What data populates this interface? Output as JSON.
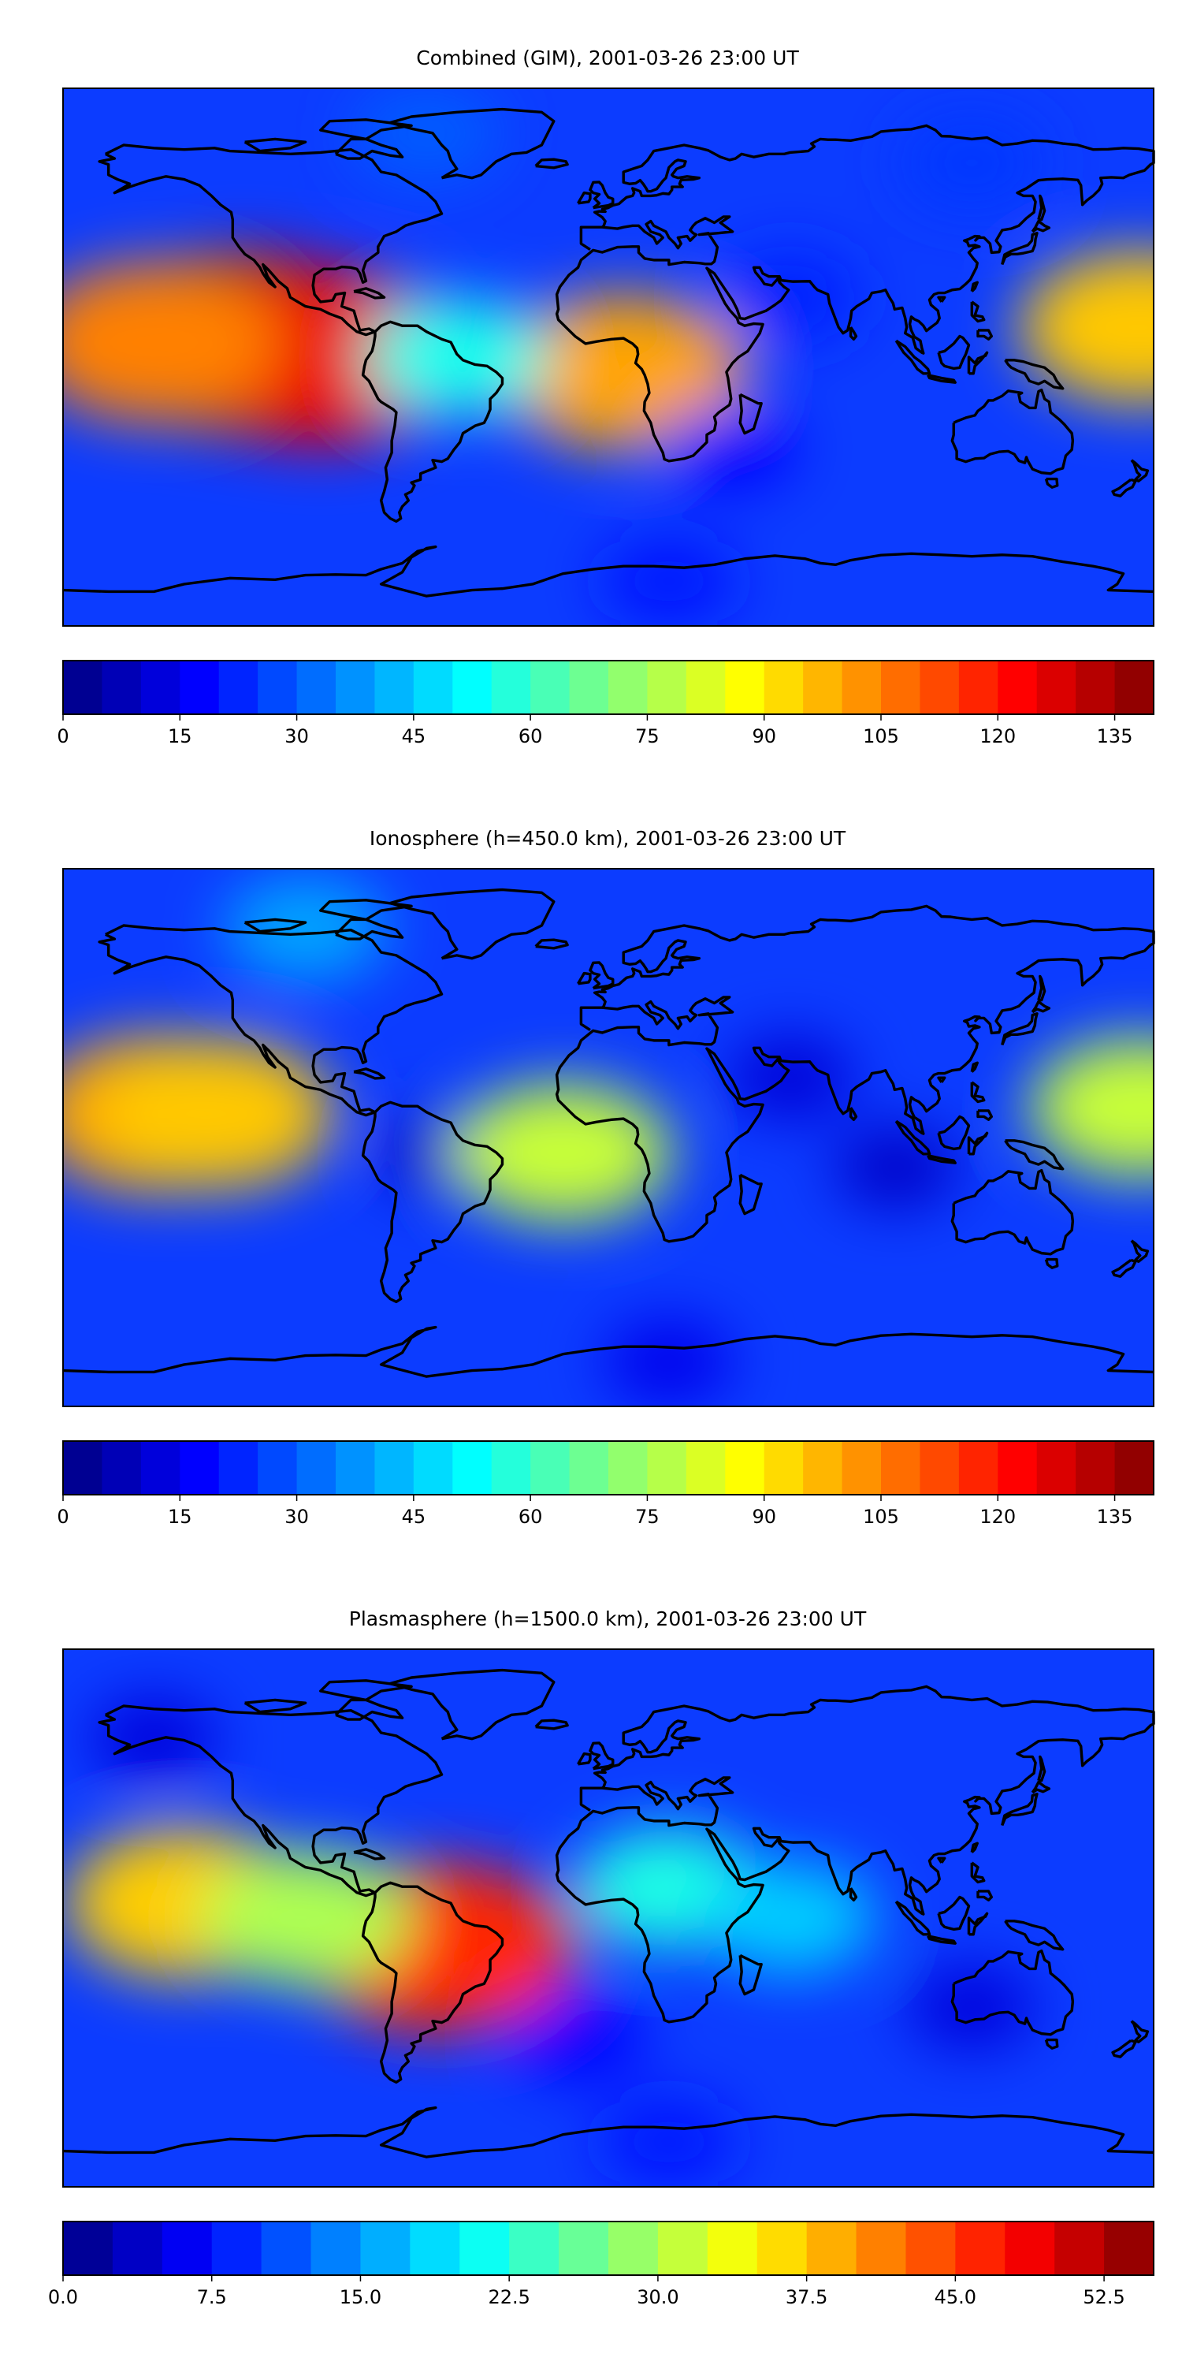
{
  "figure": {
    "colors": {
      "background": "#ffffff",
      "frame": "#000000",
      "coastline": "#000000"
    }
  },
  "chart_data": [
    {
      "type": "heatmap",
      "title": "Combined (GIM), 2001-03-26 23:00 UT",
      "projection": "plate-carree, global",
      "xlabel": "",
      "ylabel": "",
      "colormap": "jet",
      "colorbar": {
        "levels": 28,
        "range": [
          0,
          140
        ],
        "tick_values": [
          0,
          15,
          30,
          45,
          60,
          75,
          90,
          105,
          120,
          135
        ],
        "tick_labels": [
          "0",
          "15",
          "30",
          "45",
          "60",
          "75",
          "90",
          "105",
          "120",
          "135"
        ]
      },
      "features": [
        {
          "lon": -120,
          "lat": 5,
          "value": 133,
          "note": "maximum over eastern Pacific"
        },
        {
          "lon": -95,
          "lat": 0,
          "value": 125
        },
        {
          "lon": -150,
          "lat": 5,
          "value": 105
        },
        {
          "lon": 5,
          "lat": -5,
          "value": 100,
          "note": "secondary maximum off west Africa"
        },
        {
          "lon": -50,
          "lat": 0,
          "value": 55
        },
        {
          "lon": 175,
          "lat": 10,
          "value": 95,
          "note": "western edge of Pacific maximum"
        },
        {
          "lon": 60,
          "lat": 20,
          "value": 22
        },
        {
          "lon": 40,
          "lat": -30,
          "value": 18
        },
        {
          "lon": 120,
          "lat": 65,
          "value": 25
        },
        {
          "lon": -60,
          "lat": 75,
          "value": 30
        },
        {
          "lon": 20,
          "lat": -75,
          "value": 20
        }
      ]
    },
    {
      "type": "heatmap",
      "title": "Ionosphere  (h=450.0 km), 2001-03-26 23:00 UT",
      "projection": "plate-carree, global",
      "xlabel": "",
      "ylabel": "",
      "colormap": "jet",
      "colorbar": {
        "levels": 28,
        "range": [
          0,
          140
        ],
        "tick_values": [
          0,
          15,
          30,
          45,
          60,
          75,
          90,
          105,
          120,
          135
        ],
        "tick_labels": [
          "0",
          "15",
          "30",
          "45",
          "60",
          "75",
          "90",
          "105",
          "120",
          "135"
        ]
      },
      "features": [
        {
          "lon": -150,
          "lat": 8,
          "value": 100,
          "note": "maximum over central Pacific"
        },
        {
          "lon": -130,
          "lat": 8,
          "value": 95
        },
        {
          "lon": -55,
          "lat": -5,
          "value": 10,
          "note": "minimum over Brazil"
        },
        {
          "lon": -15,
          "lat": -5,
          "value": 80
        },
        {
          "lon": 60,
          "lat": 20,
          "value": 12
        },
        {
          "lon": 95,
          "lat": -10,
          "value": 10
        },
        {
          "lon": 175,
          "lat": 10,
          "value": 80
        },
        {
          "lon": -100,
          "lat": 70,
          "value": 40
        },
        {
          "lon": 20,
          "lat": -75,
          "value": 15
        }
      ]
    },
    {
      "type": "heatmap",
      "title": "Plasmasphere (h=1500.0 km), 2001-03-26 23:00 UT",
      "projection": "plate-carree, global",
      "xlabel": "",
      "ylabel": "",
      "colormap": "jet",
      "colorbar": {
        "levels": 22,
        "range": [
          0,
          55
        ],
        "tick_values": [
          0,
          7.5,
          15,
          22.5,
          30,
          37.5,
          45,
          52.5
        ],
        "tick_labels": [
          "0.0",
          "7.5",
          "15.0",
          "22.5",
          "30.0",
          "37.5",
          "45.0",
          "52.5"
        ]
      },
      "features": [
        {
          "lon": -55,
          "lat": -10,
          "value": 46,
          "note": "maximum over Brazil"
        },
        {
          "lon": -140,
          "lat": 5,
          "value": 37
        },
        {
          "lon": -100,
          "lat": 0,
          "value": 30
        },
        {
          "lon": 20,
          "lat": 10,
          "value": 22
        },
        {
          "lon": 60,
          "lat": 0,
          "value": 18
        },
        {
          "lon": 120,
          "lat": -30,
          "value": 5
        },
        {
          "lon": -10,
          "lat": -40,
          "value": 7
        },
        {
          "lon": -150,
          "lat": 60,
          "value": 5
        },
        {
          "lon": 20,
          "lat": -75,
          "value": 8
        }
      ]
    }
  ]
}
